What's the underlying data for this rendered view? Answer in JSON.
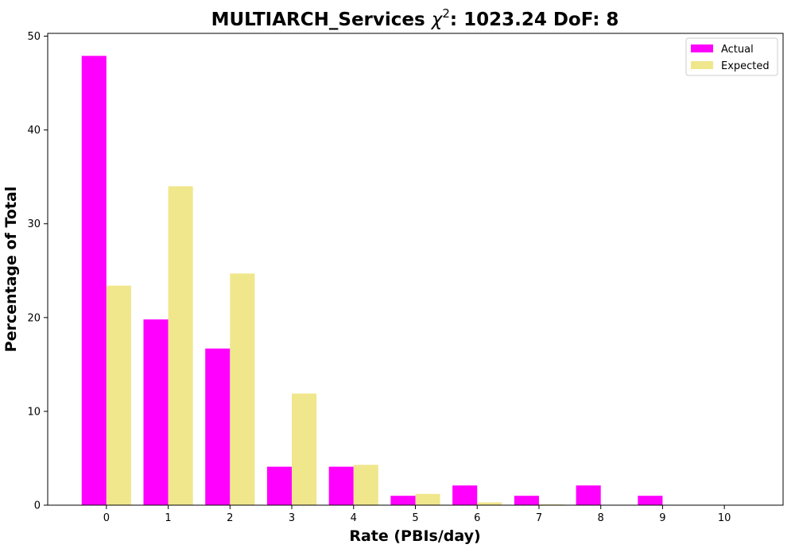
{
  "chart_data": {
    "type": "bar",
    "title": "MULTIARCH_Services χ²: 1023.24 DoF: 8",
    "title_parts": {
      "prefix": "MULTIARCH_Services ",
      "chi": "χ",
      "exponent": "2",
      "suffix": ": 1023.24 DoF: 8"
    },
    "xlabel": "Rate (PBIs/day)",
    "ylabel": "Percentage of Total",
    "categories": [
      "0",
      "1",
      "2",
      "3",
      "4",
      "5",
      "6",
      "7",
      "8",
      "9",
      "10"
    ],
    "x_ticks": [
      "0",
      "1",
      "2",
      "3",
      "4",
      "5",
      "6",
      "7",
      "8",
      "9",
      "10"
    ],
    "y_ticks": [
      "0",
      "10",
      "20",
      "30",
      "40",
      "50"
    ],
    "xlim": [
      -0.95,
      10.95
    ],
    "ylim": [
      0,
      50.3
    ],
    "grid": false,
    "legend_position": "top-right",
    "series": [
      {
        "name": "Actual",
        "color": "#ff00ff",
        "values": [
          47.9,
          19.8,
          16.7,
          4.1,
          4.1,
          1.0,
          2.1,
          1.0,
          2.1,
          1.0,
          0
        ]
      },
      {
        "name": "Expected",
        "color": "#f0e68c",
        "values": [
          23.4,
          34.0,
          24.7,
          11.9,
          4.3,
          1.2,
          0.3,
          0.08,
          0.01,
          0.0,
          0.0
        ]
      }
    ]
  }
}
